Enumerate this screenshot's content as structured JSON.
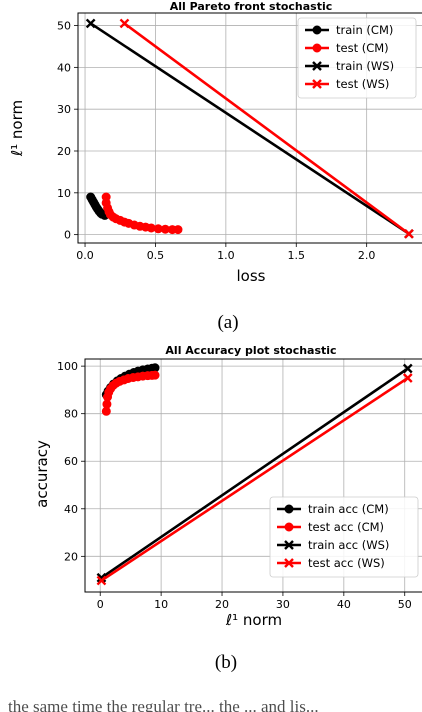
{
  "captions": [
    "(a)",
    "(b)"
  ],
  "bottom_text_fragment": "the same time the regular tre... the ... and lis...",
  "chart_data": [
    {
      "type": "line",
      "title": "All Pareto front stochastic",
      "xlabel": "loss",
      "ylabel": "ℓ¹ norm",
      "xlim": [
        -0.05,
        2.4
      ],
      "ylim": [
        -2,
        53
      ],
      "xticks": [
        0.0,
        0.5,
        1.0,
        1.5,
        2.0
      ],
      "xtick_labels": [
        "0.0",
        "0.5",
        "1.0",
        "1.5",
        "2.0"
      ],
      "yticks": [
        0,
        10,
        20,
        30,
        40,
        50
      ],
      "ytick_labels": [
        "0",
        "10",
        "20",
        "30",
        "40",
        "50"
      ],
      "grid": true,
      "legend_position": "top-right",
      "series": [
        {
          "name": "train (CM)",
          "color": "#000000",
          "marker": "circle",
          "x": [
            0.04,
            0.05,
            0.06,
            0.07,
            0.08,
            0.09,
            0.1,
            0.11,
            0.12,
            0.14
          ],
          "y": [
            9.0,
            8.4,
            7.8,
            7.2,
            6.6,
            6.1,
            5.6,
            5.2,
            4.9,
            4.6
          ]
        },
        {
          "name": "test (CM)",
          "color": "#ff0000",
          "marker": "circle",
          "x": [
            0.15,
            0.15,
            0.16,
            0.17,
            0.18,
            0.2,
            0.22,
            0.25,
            0.28,
            0.31,
            0.35,
            0.39,
            0.43,
            0.47,
            0.52,
            0.57,
            0.62,
            0.66
          ],
          "y": [
            9.0,
            7.6,
            6.4,
            5.5,
            4.8,
            4.2,
            3.8,
            3.4,
            3.0,
            2.7,
            2.3,
            2.0,
            1.8,
            1.6,
            1.4,
            1.3,
            1.2,
            1.2
          ]
        },
        {
          "name": "train (WS)",
          "color": "#000000",
          "marker": "x",
          "x": [
            0.04,
            2.3
          ],
          "y": [
            50.5,
            0.2
          ]
        },
        {
          "name": "test (WS)",
          "color": "#ff0000",
          "marker": "x",
          "x": [
            0.28,
            2.3
          ],
          "y": [
            50.5,
            0.2
          ]
        }
      ]
    },
    {
      "type": "line",
      "title": "All Accuracy plot stochastic",
      "xlabel": "ℓ¹ norm",
      "ylabel": "accuracy",
      "xlim": [
        -2.5,
        53
      ],
      "ylim": [
        5,
        103
      ],
      "xticks": [
        0,
        10,
        20,
        30,
        40,
        50
      ],
      "xtick_labels": [
        "0",
        "10",
        "20",
        "30",
        "40",
        "50"
      ],
      "yticks": [
        20,
        40,
        60,
        80,
        100
      ],
      "ytick_labels": [
        "20",
        "40",
        "60",
        "80",
        "100"
      ],
      "grid": true,
      "legend_position": "bottom-right",
      "series": [
        {
          "name": "train acc (CM)",
          "color": "#000000",
          "marker": "circle",
          "x": [
            1.0,
            1.3,
            1.7,
            2.2,
            2.8,
            3.4,
            4.1,
            4.8,
            5.5,
            6.2,
            7.0,
            7.8,
            8.5,
            9.0
          ],
          "y": [
            88,
            89.5,
            91,
            92.5,
            93.8,
            94.8,
            95.8,
            96.6,
            97.3,
            97.9,
            98.4,
            98.8,
            99.1,
            99.3
          ]
        },
        {
          "name": "test acc (CM)",
          "color": "#ff0000",
          "marker": "circle",
          "x": [
            1.0,
            1.1,
            1.2,
            1.4,
            1.7,
            2.1,
            2.6,
            3.2,
            3.9,
            4.6,
            5.4,
            6.2,
            7.0,
            7.8,
            8.5,
            9.0
          ],
          "y": [
            81,
            84,
            87,
            89,
            90.5,
            91.8,
            92.8,
            93.6,
            94.2,
            94.8,
            95.2,
            95.5,
            95.8,
            96.0,
            96.1,
            96.2
          ]
        },
        {
          "name": "train acc (WS)",
          "color": "#000000",
          "marker": "x",
          "x": [
            0.2,
            50.5
          ],
          "y": [
            11.0,
            99.0
          ]
        },
        {
          "name": "test acc (WS)",
          "color": "#ff0000",
          "marker": "x",
          "x": [
            0.2,
            50.5
          ],
          "y": [
            9.8,
            95.0
          ]
        }
      ]
    }
  ]
}
